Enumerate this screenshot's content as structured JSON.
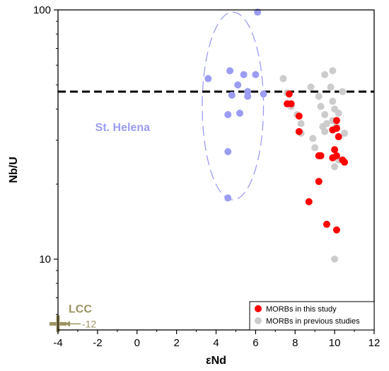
{
  "chart_data": {
    "type": "scatter",
    "xlabel": "εNd",
    "ylabel": "Nb/U",
    "xlim": [
      -4,
      12
    ],
    "ylim": [
      5.2,
      100
    ],
    "y_scale": "log",
    "x_ticks": [
      -4,
      -2,
      0,
      2,
      4,
      6,
      8,
      10,
      12
    ],
    "y_tick_labels": [
      {
        "value": 10,
        "label": "10"
      },
      {
        "value": 100,
        "label": "100"
      }
    ],
    "reference_line": {
      "y": 47,
      "style": "dashed",
      "color": "#000000"
    },
    "colors": {
      "st_helena": "#9b9cf2",
      "this_study": "#ff0000",
      "previous": "#cccccc",
      "lcc": "#9c9361"
    },
    "annotations": {
      "st_helena_label": "St. Helena",
      "lcc_label": "LCC",
      "lcc_arrow_text": "-12",
      "lcc_point": {
        "x": -4,
        "y": 5.5
      }
    },
    "st_helena_ellipse": {
      "center": [
        4.85,
        34.5
      ],
      "semi_axis_x": 1.55,
      "y_bottom": 17.3,
      "y_top": 98
    },
    "legend": {
      "placement": "bottom-right",
      "items": [
        {
          "label": "MORBs in this study",
          "color": "#ff0000"
        },
        {
          "label": "MORBs in previous studies",
          "color": "#cccccc"
        }
      ]
    },
    "series": [
      {
        "key": "previous",
        "color": "#cccccc",
        "points": [
          [
            7.4,
            53
          ],
          [
            7.6,
            46.5
          ],
          [
            7.7,
            42
          ],
          [
            7.8,
            41
          ],
          [
            8.1,
            38
          ],
          [
            8.3,
            35
          ],
          [
            8.3,
            32
          ],
          [
            8.8,
            49
          ],
          [
            8.9,
            30.5
          ],
          [
            9.0,
            28
          ],
          [
            9.2,
            45
          ],
          [
            9.3,
            41
          ],
          [
            9.5,
            55
          ],
          [
            9.5,
            38
          ],
          [
            9.6,
            35
          ],
          [
            9.4,
            34
          ],
          [
            9.5,
            32.5
          ],
          [
            9.9,
            57
          ],
          [
            9.8,
            49
          ],
          [
            9.9,
            43
          ],
          [
            10.0,
            40
          ],
          [
            9.9,
            36
          ],
          [
            10.2,
            38.5
          ],
          [
            10.1,
            34
          ],
          [
            10.4,
            47
          ],
          [
            10.5,
            32
          ],
          [
            10.2,
            25
          ],
          [
            10.0,
            23.5
          ],
          [
            9.3,
            26
          ],
          [
            10.0,
            10
          ]
        ]
      },
      {
        "key": "st_helena",
        "color": "#9b9cf2",
        "points": [
          [
            6.1,
            98
          ],
          [
            4.7,
            57
          ],
          [
            5.4,
            55
          ],
          [
            6.0,
            55
          ],
          [
            3.6,
            53
          ],
          [
            5.1,
            50
          ],
          [
            5.6,
            47
          ],
          [
            4.8,
            45.5
          ],
          [
            6.4,
            46
          ],
          [
            5.6,
            45
          ],
          [
            4.6,
            38
          ],
          [
            5.2,
            38.5
          ],
          [
            4.6,
            27
          ],
          [
            4.6,
            17.6
          ]
        ]
      },
      {
        "key": "this_study",
        "color": "#ff0000",
        "points": [
          [
            7.7,
            46
          ],
          [
            7.6,
            42
          ],
          [
            7.8,
            42
          ],
          [
            8.2,
            37.5
          ],
          [
            8.2,
            32.5
          ],
          [
            10.1,
            36
          ],
          [
            10.1,
            33.5
          ],
          [
            9.9,
            33
          ],
          [
            10.2,
            31
          ],
          [
            10.0,
            27.5
          ],
          [
            10.1,
            26
          ],
          [
            9.9,
            25.5
          ],
          [
            9.3,
            26
          ],
          [
            9.2,
            26
          ],
          [
            10.5,
            24.5
          ],
          [
            10.4,
            25
          ],
          [
            9.2,
            20.5
          ],
          [
            8.7,
            17
          ],
          [
            9.6,
            13.8
          ],
          [
            10.1,
            13.1
          ]
        ]
      }
    ]
  }
}
